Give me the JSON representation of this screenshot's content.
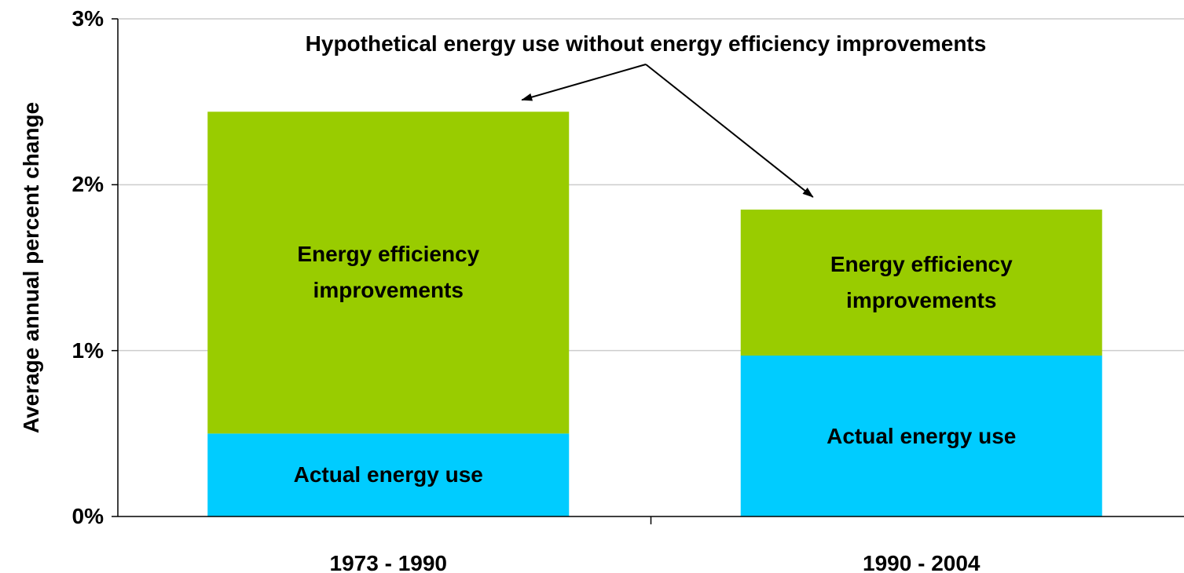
{
  "chart_data": {
    "type": "stacked_bar",
    "annotation": "Hypothetical energy use without energy efficiency improvements",
    "y_label": "Average annual percent change",
    "categories": [
      "1973 - 1990",
      "1990 - 2004"
    ],
    "series": [
      {
        "name": "Actual energy use",
        "color": "#00ccff",
        "values": [
          0.5,
          0.97
        ]
      },
      {
        "name": "Energy efficiency improvements",
        "color": "#99cc00",
        "values": [
          1.94,
          0.88
        ]
      }
    ],
    "ylim": [
      0,
      3
    ],
    "yticks": [
      {
        "value": 0,
        "label": "0%"
      },
      {
        "value": 1,
        "label": "1%"
      },
      {
        "value": 2,
        "label": "2%"
      },
      {
        "value": 3,
        "label": "3%"
      }
    ],
    "grid": true
  }
}
